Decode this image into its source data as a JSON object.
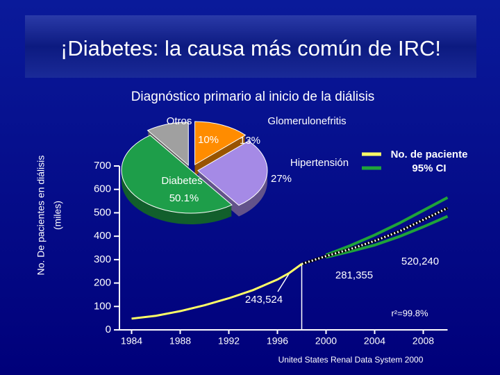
{
  "chart_data": [
    {
      "type": "line",
      "title": "¡Diabetes: la causa más común de IRC!",
      "ylabel": [
        "No. De pacientes en diálisis",
        "(miles)"
      ],
      "xlim": [
        1983,
        2010
      ],
      "xticks": [
        1984,
        1988,
        1992,
        1996,
        2000,
        2004,
        2008
      ],
      "ylim": [
        0,
        700
      ],
      "yticks": [
        0,
        100,
        200,
        300,
        400,
        500,
        600,
        700
      ],
      "legend": "upper right",
      "series": [
        {
          "name": "No. de paciente",
          "color": "#ffff66",
          "x": [
            1984,
            1986,
            1988,
            1990,
            1992,
            1994,
            1996,
            1997,
            1998
          ],
          "values": [
            48,
            60,
            80,
            105,
            135,
            170,
            215,
            243.524,
            281.355
          ]
        },
        {
          "color": "#ffffff",
          "dash": "dotted",
          "x": [
            1998,
            2000,
            2002,
            2004,
            2006,
            2008,
            2010
          ],
          "values": [
            281.355,
            315,
            345,
            380,
            420,
            470,
            520.24
          ]
        },
        {
          "name": "95% CI",
          "color": "#1fa33a",
          "x": [
            2000,
            2002,
            2004,
            2006,
            2008,
            2010
          ],
          "values": [
            320,
            360,
            405,
            455,
            510,
            565
          ]
        },
        {
          "color": "#1fa33a",
          "x": [
            2000,
            2002,
            2004,
            2006,
            2008,
            2010
          ],
          "values": [
            310,
            335,
            362,
            398,
            440,
            485
          ]
        }
      ],
      "annotations": [
        "243,524",
        "281,355",
        "520,240",
        "r²=99.8%"
      ],
      "source": "United States Renal Data System 2000"
    },
    {
      "type": "pie",
      "title": "Diagnóstico primario al inicio de la diálisis",
      "categories": [
        "Glomerulonefritis",
        "Hipertensión",
        "Diabetes",
        "Otros"
      ],
      "values": [
        13,
        27,
        50.1,
        10
      ],
      "value_labels": [
        "13%",
        "27%",
        "50.1%",
        "10%"
      ],
      "colors": [
        "#ff8c00",
        "#a58ae6",
        "#1e9e4a",
        "#a0a0a0"
      ]
    }
  ]
}
